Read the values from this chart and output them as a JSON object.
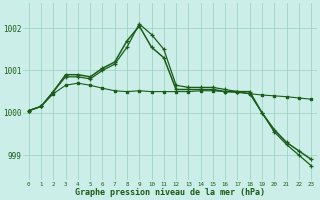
{
  "title": "Graphe pression niveau de la mer (hPa)",
  "background_color": "#cceee8",
  "grid_color": "#99ccbb",
  "line_color": "#1a5c1a",
  "x_labels": [
    "0",
    "1",
    "2",
    "3",
    "4",
    "5",
    "6",
    "7",
    "8",
    "9",
    "10",
    "11",
    "12",
    "13",
    "14",
    "15",
    "16",
    "17",
    "18",
    "19",
    "20",
    "21",
    "22",
    "23"
  ],
  "yticks": [
    999,
    1000,
    1001,
    1002
  ],
  "ylim": [
    998.4,
    1002.6
  ],
  "series_peak1": [
    1000.05,
    1000.15,
    1000.5,
    1000.85,
    1000.85,
    1000.8,
    1001.0,
    1001.15,
    1001.55,
    1002.1,
    1001.85,
    1001.5,
    1000.65,
    1000.6,
    1000.6,
    1000.6,
    1000.55,
    1000.5,
    1000.45,
    1000.0,
    999.55,
    999.25,
    999.0,
    998.75
  ],
  "series_peak2": [
    1000.05,
    1000.15,
    1000.5,
    1000.9,
    1000.9,
    1000.85,
    1001.05,
    1001.2,
    1001.7,
    1002.05,
    1001.55,
    1001.3,
    1000.55,
    1000.55,
    1000.55,
    1000.55,
    1000.5,
    1000.5,
    1000.5,
    1000.0,
    999.6,
    999.3,
    999.1,
    998.9
  ],
  "series_flat": [
    1000.05,
    1000.15,
    1000.45,
    1000.65,
    1000.7,
    1000.65,
    1000.58,
    1000.52,
    1000.5,
    1000.52,
    1000.5,
    1000.5,
    1000.5,
    1000.5,
    1000.52,
    1000.52,
    1000.5,
    1000.48,
    1000.45,
    1000.42,
    1000.4,
    1000.38,
    1000.35,
    1000.32
  ]
}
